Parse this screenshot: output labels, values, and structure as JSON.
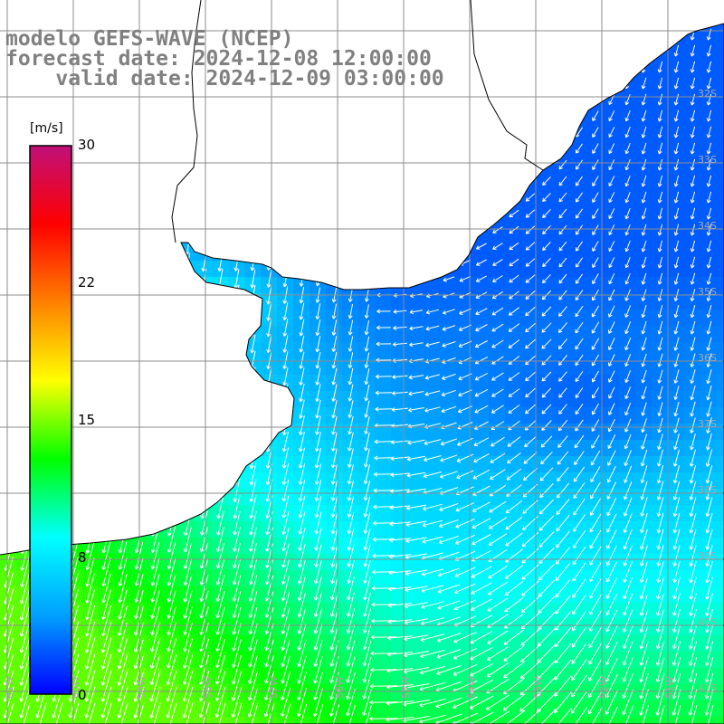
{
  "header": {
    "model": "modelo GEFS-WAVE (NCEP)",
    "forecast": "forecast date: 2024-12-08 12:00:00",
    "valid": "    valid date: 2024-12-09 03:00:00"
  },
  "colorbar": {
    "unit": "[m/s]",
    "ticks": [
      {
        "label": "30",
        "value": 30
      },
      {
        "label": "22",
        "value": 22
      },
      {
        "label": "15",
        "value": 15
      },
      {
        "label": "8",
        "value": 8
      },
      {
        "label": "0",
        "value": 0
      }
    ],
    "colormap": [
      "#0000ff",
      "#00a0ff",
      "#00ffff",
      "#00ff00",
      "#ffff00",
      "#ff8000",
      "#ff0000",
      "#c0107a"
    ]
  },
  "map": {
    "lon_range": [
      -61,
      -50
    ],
    "lat_range": [
      -41,
      -31
    ],
    "lon_labels": [
      "61W",
      "60W",
      "59W",
      "58W",
      "57W",
      "56W",
      "55W",
      "54W",
      "53W",
      "52W",
      "51W"
    ],
    "lat_labels": [
      "32S",
      "33S",
      "34S",
      "35S",
      "36S",
      "37S",
      "38S",
      "39S",
      "40S",
      "41S"
    ],
    "colors": {
      "land": "#ffffff",
      "grid": "#8c8c8c",
      "coast": "#000000",
      "arrow": "#ffffff",
      "label": "#a8a8a8"
    }
  }
}
